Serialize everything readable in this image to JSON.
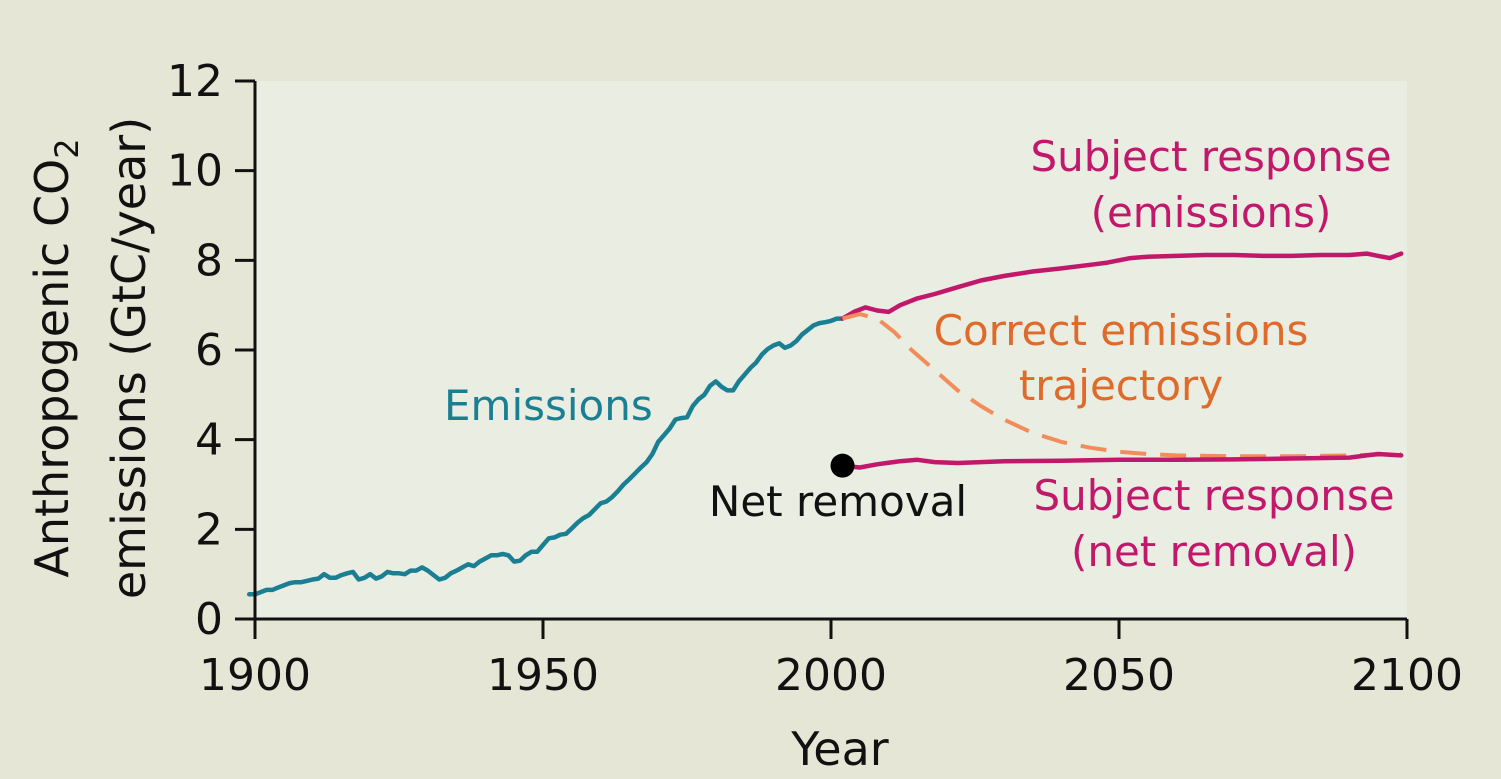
{
  "chart_data": {
    "type": "line",
    "xlabel": "Year",
    "ylabel_main": "Anthropogenic CO",
    "ylabel_sub": "2",
    "ylabel_line2": "emissions (GtC/year)",
    "xlim": [
      1900,
      2100
    ],
    "ylim": [
      0,
      12
    ],
    "xticks": [
      1900,
      1950,
      2000,
      2050,
      2100
    ],
    "yticks": [
      0,
      2,
      4,
      6,
      8,
      10,
      12
    ],
    "grid": false,
    "colors": {
      "background": "#e6e6d6",
      "plot_area": "#e9ede2",
      "emissions": "#1b7f93",
      "subject": "#c2186b",
      "correct": "#f28c5a",
      "correct_label": "#e06a2a",
      "point": "#000000"
    },
    "annotations": {
      "emissions": "Emissions",
      "subject_emissions_1": "Subject response",
      "subject_emissions_2": "(emissions)",
      "correct_1": "Correct emissions",
      "correct_2": "trajectory",
      "net_removal": "Net removal",
      "subject_removal_1": "Subject response",
      "subject_removal_2": "(net removal)"
    },
    "series": [
      {
        "name": "Emissions",
        "style": "solid",
        "color": "#1b7f93",
        "points": [
          [
            1899,
            0.55
          ],
          [
            1900,
            0.55
          ],
          [
            1901,
            0.6
          ],
          [
            1902,
            0.65
          ],
          [
            1903,
            0.65
          ],
          [
            1904,
            0.7
          ],
          [
            1905,
            0.75
          ],
          [
            1906,
            0.8
          ],
          [
            1907,
            0.82
          ],
          [
            1908,
            0.82
          ],
          [
            1909,
            0.85
          ],
          [
            1910,
            0.88
          ],
          [
            1911,
            0.9
          ],
          [
            1912,
            1.0
          ],
          [
            1913,
            0.92
          ],
          [
            1914,
            0.92
          ],
          [
            1915,
            0.98
          ],
          [
            1916,
            1.02
          ],
          [
            1917,
            1.05
          ],
          [
            1918,
            0.88
          ],
          [
            1919,
            0.92
          ],
          [
            1920,
            1.0
          ],
          [
            1921,
            0.9
          ],
          [
            1922,
            0.95
          ],
          [
            1923,
            1.05
          ],
          [
            1924,
            1.02
          ],
          [
            1925,
            1.02
          ],
          [
            1926,
            1.0
          ],
          [
            1927,
            1.08
          ],
          [
            1928,
            1.08
          ],
          [
            1929,
            1.15
          ],
          [
            1930,
            1.08
          ],
          [
            1931,
            0.98
          ],
          [
            1932,
            0.88
          ],
          [
            1933,
            0.92
          ],
          [
            1934,
            1.02
          ],
          [
            1935,
            1.08
          ],
          [
            1936,
            1.15
          ],
          [
            1937,
            1.22
          ],
          [
            1938,
            1.18
          ],
          [
            1939,
            1.28
          ],
          [
            1940,
            1.35
          ],
          [
            1941,
            1.42
          ],
          [
            1942,
            1.42
          ],
          [
            1943,
            1.45
          ],
          [
            1944,
            1.42
          ],
          [
            1945,
            1.28
          ],
          [
            1946,
            1.3
          ],
          [
            1947,
            1.42
          ],
          [
            1948,
            1.5
          ],
          [
            1949,
            1.5
          ],
          [
            1950,
            1.65
          ],
          [
            1951,
            1.8
          ],
          [
            1952,
            1.82
          ],
          [
            1953,
            1.88
          ],
          [
            1954,
            1.9
          ],
          [
            1955,
            2.02
          ],
          [
            1956,
            2.15
          ],
          [
            1957,
            2.25
          ],
          [
            1958,
            2.32
          ],
          [
            1959,
            2.45
          ],
          [
            1960,
            2.58
          ],
          [
            1961,
            2.62
          ],
          [
            1962,
            2.72
          ],
          [
            1963,
            2.85
          ],
          [
            1964,
            3.0
          ],
          [
            1965,
            3.12
          ],
          [
            1966,
            3.25
          ],
          [
            1967,
            3.38
          ],
          [
            1968,
            3.5
          ],
          [
            1969,
            3.68
          ],
          [
            1970,
            3.95
          ],
          [
            1971,
            4.1
          ],
          [
            1972,
            4.25
          ],
          [
            1973,
            4.45
          ],
          [
            1974,
            4.48
          ],
          [
            1975,
            4.5
          ],
          [
            1976,
            4.75
          ],
          [
            1977,
            4.9
          ],
          [
            1978,
            5.0
          ],
          [
            1979,
            5.2
          ],
          [
            1980,
            5.3
          ],
          [
            1981,
            5.18
          ],
          [
            1982,
            5.1
          ],
          [
            1983,
            5.1
          ],
          [
            1984,
            5.3
          ],
          [
            1985,
            5.45
          ],
          [
            1986,
            5.6
          ],
          [
            1987,
            5.72
          ],
          [
            1988,
            5.9
          ],
          [
            1989,
            6.02
          ],
          [
            1990,
            6.1
          ],
          [
            1991,
            6.15
          ],
          [
            1992,
            6.05
          ],
          [
            1993,
            6.1
          ],
          [
            1994,
            6.2
          ],
          [
            1995,
            6.35
          ],
          [
            1996,
            6.45
          ],
          [
            1997,
            6.55
          ],
          [
            1998,
            6.6
          ],
          [
            1999,
            6.62
          ],
          [
            2000,
            6.65
          ],
          [
            2001,
            6.7
          ],
          [
            2002,
            6.7
          ]
        ]
      },
      {
        "name": "Subject response (emissions)",
        "style": "solid",
        "color": "#c2186b",
        "points": [
          [
            2002,
            6.7
          ],
          [
            2004,
            6.85
          ],
          [
            2006,
            6.95
          ],
          [
            2008,
            6.88
          ],
          [
            2010,
            6.85
          ],
          [
            2012,
            7.0
          ],
          [
            2015,
            7.15
          ],
          [
            2018,
            7.25
          ],
          [
            2022,
            7.4
          ],
          [
            2026,
            7.55
          ],
          [
            2030,
            7.65
          ],
          [
            2035,
            7.75
          ],
          [
            2040,
            7.82
          ],
          [
            2045,
            7.9
          ],
          [
            2048,
            7.95
          ],
          [
            2052,
            8.05
          ],
          [
            2055,
            8.08
          ],
          [
            2060,
            8.1
          ],
          [
            2065,
            8.12
          ],
          [
            2070,
            8.12
          ],
          [
            2075,
            8.1
          ],
          [
            2080,
            8.1
          ],
          [
            2085,
            8.12
          ],
          [
            2090,
            8.12
          ],
          [
            2093,
            8.15
          ],
          [
            2095,
            8.1
          ],
          [
            2097,
            8.05
          ],
          [
            2099,
            8.15
          ]
        ]
      },
      {
        "name": "Correct emissions trajectory",
        "style": "dashed",
        "color": "#f28c5a",
        "points": [
          [
            2002,
            6.7
          ],
          [
            2005,
            6.8
          ],
          [
            2008,
            6.7
          ],
          [
            2011,
            6.4
          ],
          [
            2014,
            6.0
          ],
          [
            2018,
            5.55
          ],
          [
            2022,
            5.1
          ],
          [
            2026,
            4.75
          ],
          [
            2030,
            4.45
          ],
          [
            2035,
            4.15
          ],
          [
            2040,
            3.95
          ],
          [
            2045,
            3.82
          ],
          [
            2050,
            3.73
          ],
          [
            2055,
            3.68
          ],
          [
            2060,
            3.65
          ],
          [
            2070,
            3.63
          ],
          [
            2080,
            3.63
          ],
          [
            2090,
            3.65
          ],
          [
            2099,
            3.68
          ]
        ]
      },
      {
        "name": "Subject response (net removal)",
        "style": "solid",
        "color": "#c2186b",
        "points": [
          [
            2002,
            3.42
          ],
          [
            2005,
            3.38
          ],
          [
            2008,
            3.45
          ],
          [
            2012,
            3.52
          ],
          [
            2015,
            3.55
          ],
          [
            2018,
            3.5
          ],
          [
            2022,
            3.48
          ],
          [
            2026,
            3.5
          ],
          [
            2030,
            3.52
          ],
          [
            2040,
            3.53
          ],
          [
            2050,
            3.55
          ],
          [
            2060,
            3.55
          ],
          [
            2070,
            3.56
          ],
          [
            2080,
            3.58
          ],
          [
            2090,
            3.6
          ],
          [
            2093,
            3.65
          ],
          [
            2095,
            3.68
          ],
          [
            2099,
            3.65
          ]
        ]
      }
    ],
    "net_removal_point": [
      2002,
      3.42
    ]
  }
}
